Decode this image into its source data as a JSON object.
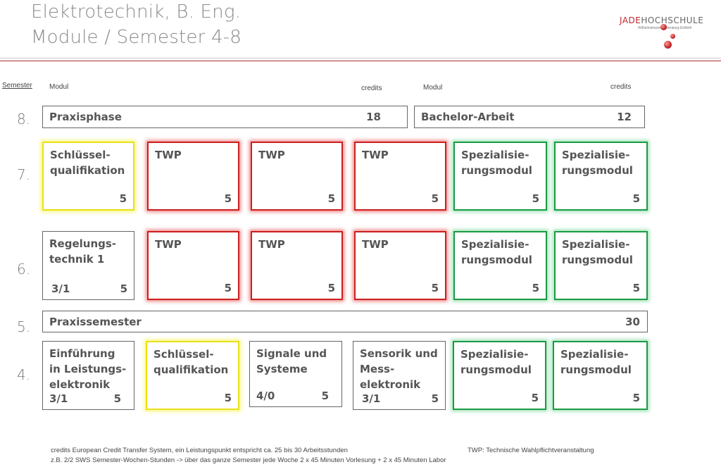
{
  "title": {
    "line1": "Elektrotechnik, B. Eng.",
    "line2": "Module / Semester 4-8"
  },
  "logo": {
    "prefix": "JADE",
    "suffix": "HOCHSCHULE",
    "subtitle": "Wilhelmshaven Oldenburg Elsfleth"
  },
  "headers": {
    "semester": "Semester",
    "modul_left": "Modul",
    "credits_left": "credits",
    "modul_right": "Modul",
    "credits_right": "credits"
  },
  "semesters": {
    "s8": "8.",
    "s7": "7.",
    "s6": "6.",
    "s5": "5.",
    "s4": "4."
  },
  "row8": [
    {
      "name": "Praxisphase",
      "credits": "18"
    },
    {
      "name": "Bachelor-Arbeit",
      "credits": "12"
    }
  ],
  "row7": [
    {
      "name": "Schlüssel-\nqualifikation",
      "credits": "5",
      "category": "yellow"
    },
    {
      "name": "TWP",
      "credits": "5",
      "category": "red"
    },
    {
      "name": "TWP",
      "credits": "5",
      "category": "red"
    },
    {
      "name": "TWP",
      "credits": "5",
      "category": "red"
    },
    {
      "name": "Spezialisie-\nrungsmodul",
      "credits": "5",
      "category": "green"
    },
    {
      "name": "Spezialisie-\nrungsmodul",
      "credits": "5",
      "category": "green"
    }
  ],
  "row6": [
    {
      "name": "Regelungs-\ntechnik 1",
      "sws": "3/1",
      "credits": "5",
      "category": "plain"
    },
    {
      "name": "TWP",
      "credits": "5",
      "category": "red"
    },
    {
      "name": "TWP",
      "credits": "5",
      "category": "red"
    },
    {
      "name": "TWP",
      "credits": "5",
      "category": "red"
    },
    {
      "name": "Spezialisie-\nrungsmodul",
      "credits": "5",
      "category": "green"
    },
    {
      "name": "Spezialisie-\nrungsmodul",
      "credits": "5",
      "category": "green"
    }
  ],
  "row5": {
    "name": "Praxissemester",
    "credits": "30"
  },
  "row4": [
    {
      "name": "Einführung\nin Leistungs-\nelektronik",
      "sws": "3/1",
      "credits": "5",
      "category": "plain"
    },
    {
      "name": "Schlüssel-\nqualifikation",
      "credits": "5",
      "category": "yellow"
    },
    {
      "name": "Signale und\nSysteme",
      "sws": "4/0",
      "credits": "5",
      "category": "plain"
    },
    {
      "name": "Sensorik und\nMess-\nelektronik",
      "sws": "3/1",
      "credits": "5",
      "category": "plain"
    },
    {
      "name": "Spezialisie-\nrungsmodul",
      "credits": "5",
      "category": "green"
    },
    {
      "name": "Spezialisie-\nrungsmodul",
      "credits": "5",
      "category": "green"
    }
  ],
  "footer": {
    "credits_note": "credits European Credit Transfer System, ein Leistungspunkt entspricht ca. 25 bis 30 Arbeitsstunden",
    "twp_note": "TWP: Technische Wahlpflichtveranstaltung",
    "sws_note": "z.B.  2/2 SWS Semester-Wochen-Stunden  -> über das ganze Semester jede Woche 2 x 45 Minuten Vorlesung + 2 x 45 Minuten Labor"
  },
  "colors": {
    "twp_red": "#cc1f1f",
    "spezialisierung_green": "#1a9a44",
    "schluesselqualifikation_yellow": "#e9e01a",
    "brand_red": "#c0262d"
  }
}
